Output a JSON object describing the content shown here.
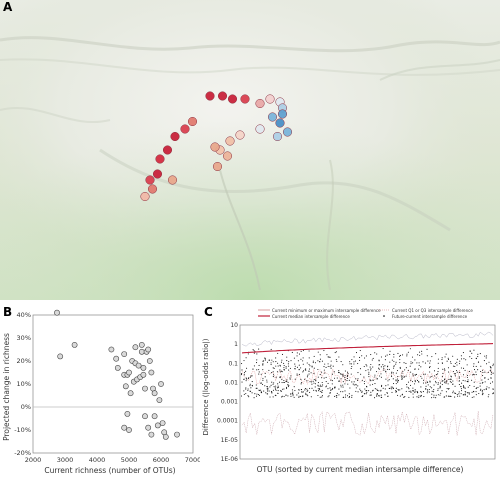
{
  "panels": {
    "a": "A",
    "b": "B",
    "c": "C"
  },
  "map": {
    "sites": [
      {
        "lon": 0.42,
        "lat": 0.32,
        "color": "#c8223a"
      },
      {
        "lon": 0.445,
        "lat": 0.32,
        "color": "#c8223a"
      },
      {
        "lon": 0.465,
        "lat": 0.33,
        "color": "#c8223a"
      },
      {
        "lon": 0.49,
        "lat": 0.33,
        "color": "#d94050"
      },
      {
        "lon": 0.52,
        "lat": 0.345,
        "color": "#e8a8a8"
      },
      {
        "lon": 0.54,
        "lat": 0.33,
        "color": "#f2d0d0"
      },
      {
        "lon": 0.56,
        "lat": 0.34,
        "color": "#dfe8f0"
      },
      {
        "lon": 0.565,
        "lat": 0.36,
        "color": "#aecfe6"
      },
      {
        "lon": 0.545,
        "lat": 0.39,
        "color": "#7ab4da"
      },
      {
        "lon": 0.565,
        "lat": 0.38,
        "color": "#5fa0d0"
      },
      {
        "lon": 0.56,
        "lat": 0.41,
        "color": "#4a8fc6"
      },
      {
        "lon": 0.575,
        "lat": 0.44,
        "color": "#7ab4da"
      },
      {
        "lon": 0.555,
        "lat": 0.455,
        "color": "#aecfe6"
      },
      {
        "lon": 0.52,
        "lat": 0.43,
        "color": "#e0e8ef"
      },
      {
        "lon": 0.48,
        "lat": 0.45,
        "color": "#f4d4c8"
      },
      {
        "lon": 0.46,
        "lat": 0.47,
        "color": "#f0c0a8"
      },
      {
        "lon": 0.44,
        "lat": 0.5,
        "color": "#f2c4ac"
      },
      {
        "lon": 0.43,
        "lat": 0.49,
        "color": "#e8a88c"
      },
      {
        "lon": 0.455,
        "lat": 0.52,
        "color": "#ecb49a"
      },
      {
        "lon": 0.435,
        "lat": 0.555,
        "color": "#e8a88c"
      },
      {
        "lon": 0.385,
        "lat": 0.405,
        "color": "#e07a70"
      },
      {
        "lon": 0.37,
        "lat": 0.43,
        "color": "#d94050"
      },
      {
        "lon": 0.35,
        "lat": 0.455,
        "color": "#c8223a"
      },
      {
        "lon": 0.335,
        "lat": 0.5,
        "color": "#c8223a"
      },
      {
        "lon": 0.32,
        "lat": 0.53,
        "color": "#d42c40"
      },
      {
        "lon": 0.315,
        "lat": 0.58,
        "color": "#c8223a"
      },
      {
        "lon": 0.3,
        "lat": 0.6,
        "color": "#d94050"
      },
      {
        "lon": 0.305,
        "lat": 0.63,
        "color": "#e07a70"
      },
      {
        "lon": 0.29,
        "lat": 0.655,
        "color": "#f0b8a8"
      },
      {
        "lon": 0.345,
        "lat": 0.6,
        "color": "#e8a88c"
      }
    ]
  },
  "scatter": {
    "xlabel": "Current richness (number of OTUs)",
    "ylabel": "Projected change in richness",
    "xticks": [
      "2000",
      "3000",
      "4000",
      "5000",
      "6000",
      "7000"
    ],
    "yticks": [
      "-20%",
      "-10%",
      "0%",
      "10%",
      "20%",
      "30%",
      "40%"
    ]
  },
  "difference": {
    "xlabel": "OTU (sorted by current median intersample difference)",
    "ylabel": "Difference (|log-odds ratio|)",
    "yticks": [
      "10",
      "1",
      "0.1",
      "0.01",
      "0.001",
      "0.0001",
      "1E-05",
      "1E-06"
    ],
    "legend": [
      "Current minimum or maximum intersample difference",
      "Current median intersample difference",
      "Current Q1 or Q3 intersample difference",
      "Future-current intersample difference"
    ]
  },
  "chart_data": [
    {
      "type": "scatter",
      "xlabel": "Current richness (number of OTUs)",
      "ylabel": "Projected change in richness",
      "xlim": [
        2000,
        7000
      ],
      "ylim": [
        -20,
        40
      ],
      "points": [
        [
          2750,
          41
        ],
        [
          2850,
          22
        ],
        [
          3300,
          27
        ],
        [
          4450,
          25
        ],
        [
          4600,
          21
        ],
        [
          4650,
          17
        ],
        [
          4850,
          23
        ],
        [
          4850,
          14
        ],
        [
          4900,
          9
        ],
        [
          4950,
          14
        ],
        [
          5000,
          15
        ],
        [
          5050,
          6
        ],
        [
          5100,
          20
        ],
        [
          5150,
          11
        ],
        [
          5200,
          19
        ],
        [
          5200,
          26
        ],
        [
          5250,
          12
        ],
        [
          5300,
          18
        ],
        [
          5350,
          13
        ],
        [
          5400,
          27
        ],
        [
          5400,
          24
        ],
        [
          5450,
          17
        ],
        [
          5450,
          14
        ],
        [
          5500,
          8
        ],
        [
          5550,
          24
        ],
        [
          5600,
          25
        ],
        [
          5650,
          20
        ],
        [
          5700,
          15
        ],
        [
          5750,
          8
        ],
        [
          5800,
          6
        ],
        [
          5800,
          -4
        ],
        [
          5950,
          3
        ],
        [
          6000,
          10
        ],
        [
          6050,
          -7
        ],
        [
          6100,
          -11
        ],
        [
          6150,
          -13
        ],
        [
          6500,
          -12
        ],
        [
          4850,
          -9
        ],
        [
          5000,
          -10
        ],
        [
          5600,
          -9
        ],
        [
          5700,
          -12
        ],
        [
          5500,
          -4
        ],
        [
          4950,
          -3
        ],
        [
          5900,
          -8
        ]
      ]
    },
    {
      "type": "line",
      "xlabel": "OTU (sorted by current median intersample difference)",
      "ylabel": "Difference (|log-odds ratio|)",
      "yscale": "log",
      "ylim": [
        1e-06,
        10
      ],
      "series": [
        {
          "name": "Current minimum or maximum intersample difference",
          "values": [
            0.6,
            0.7,
            0.8,
            0.9,
            1.0,
            1.1,
            1.2,
            1.3,
            1.4,
            1.5
          ]
        },
        {
          "name": "Current median intersample difference",
          "values": [
            0.4,
            0.45,
            0.5,
            0.55,
            0.6,
            0.65,
            0.7,
            0.75,
            0.8,
            0.9
          ]
        },
        {
          "name": "Current Q1 or Q3 intersample difference",
          "values": [
            0.2,
            0.25,
            0.3,
            0.35,
            0.4,
            0.45,
            0.5,
            0.55,
            0.6,
            0.65
          ]
        }
      ]
    }
  ]
}
